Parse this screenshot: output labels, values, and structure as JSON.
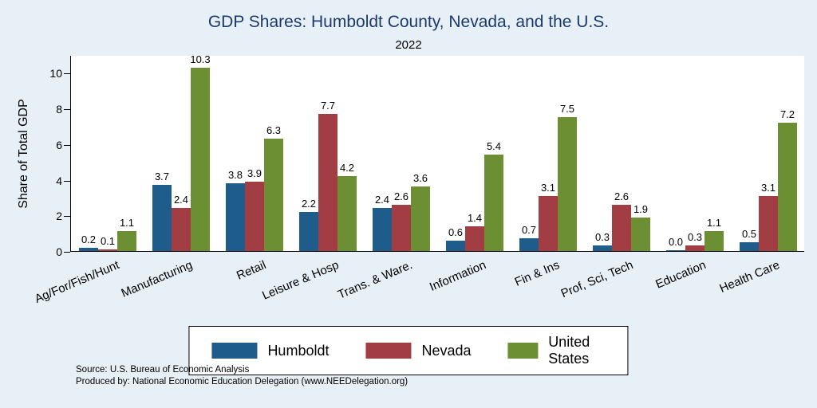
{
  "chart_data": {
    "type": "bar",
    "title": "GDP Shares: Humboldt County, Nevada, and the U.S.",
    "subtitle": "2022",
    "ylabel": "Share of Total GDP",
    "xlabel": "",
    "ylim": [
      0,
      11
    ],
    "yticks": [
      0,
      2,
      4,
      6,
      8,
      10
    ],
    "grid": false,
    "legend_position": "bottom",
    "categories": [
      "Ag/For/Fish/Hunt",
      "Manufacturing",
      "Retail",
      "Leisure & Hosp",
      "Trans. & Ware.",
      "Information",
      "Fin & Ins",
      "Prof, Sci, Tech",
      "Education",
      "Health Care"
    ],
    "series": [
      {
        "name": "Humboldt",
        "color": "#1e5c8b",
        "values": [
          0.2,
          3.7,
          3.8,
          2.2,
          2.4,
          0.6,
          0.7,
          0.3,
          0.0,
          0.5
        ]
      },
      {
        "name": "Nevada",
        "color": "#a33d44",
        "values": [
          0.1,
          2.4,
          3.9,
          7.7,
          2.6,
          1.4,
          3.1,
          2.6,
          0.3,
          3.1
        ]
      },
      {
        "name": "United States",
        "color": "#6d8f33",
        "values": [
          1.1,
          10.3,
          6.3,
          4.2,
          3.6,
          5.4,
          7.5,
          1.9,
          1.1,
          7.2
        ]
      }
    ]
  },
  "notes": {
    "source": "Source: U.S. Bureau of Economic Analysis",
    "produced_by": "Produced by: National Economic Education Delegation (www.NEEDelegation.org)"
  },
  "colors": {
    "background": "#e7f0f7",
    "plot_background": "#ffffff",
    "title_text": "#1b3a6b",
    "axis": "#000000"
  }
}
